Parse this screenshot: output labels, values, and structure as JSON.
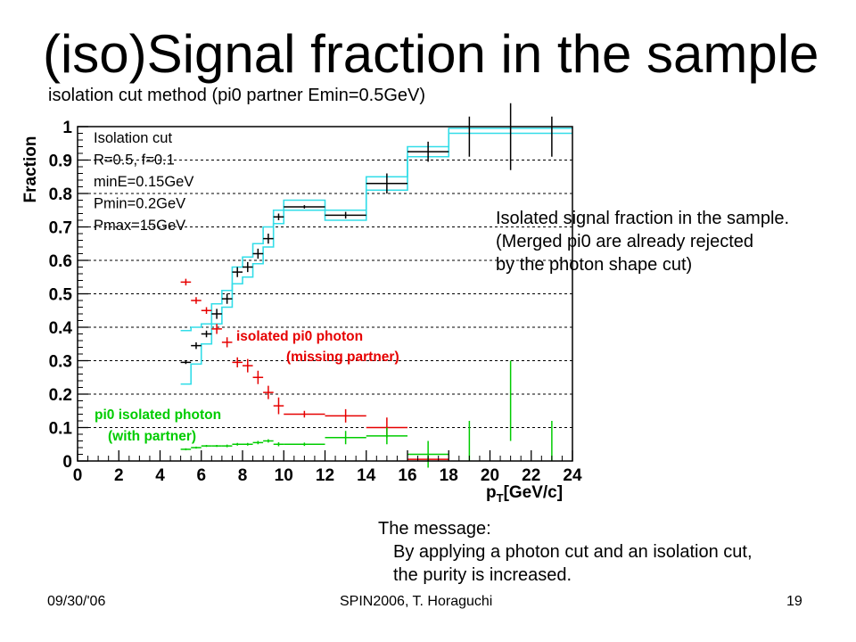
{
  "slide": {
    "title": "(iso)Signal fraction in the sample",
    "subtitle": "isolation cut method (pi0 partner Emin=0.5GeV)",
    "annotation_lines": [
      "Isolated signal fraction in the sample.",
      "(Merged pi0 are already rejected",
      "by the photon shape cut)"
    ],
    "message_title": "The message:",
    "message_lines": [
      "By applying a photon cut and an isolation cut,",
      "the purity is increased."
    ],
    "footer_date": "09/30/'06",
    "footer_center": "SPIN2006, T. Horaguchi",
    "footer_page": "19"
  },
  "chart_data": {
    "type": "scatter",
    "xlabel": "p_T[GeV/c]",
    "ylabel": "Fraction",
    "xlim": [
      0,
      24
    ],
    "ylim": [
      0,
      1
    ],
    "x_ticks": [
      0,
      2,
      4,
      6,
      8,
      10,
      12,
      14,
      16,
      18,
      20,
      22,
      24
    ],
    "y_ticks": [
      "0",
      "0.1",
      "0.2",
      "0.3",
      "0.4",
      "0.5",
      "0.6",
      "0.7",
      "0.8",
      "0.9",
      "1"
    ],
    "grid": "horizontal dashed",
    "info_box": [
      "Isolation cut",
      "R=0.5, f=0.1",
      "minE=0.15GeV",
      "Pmin=0.2GeV",
      "Pmax=15GeV"
    ],
    "series_labels": {
      "red": [
        "isolated pi0 photon",
        "(missing partner)"
      ],
      "green": [
        "pi0 isolated photon",
        "(with partner)"
      ]
    },
    "colors": {
      "black": "#000000",
      "red": "#e60000",
      "green": "#00cc00",
      "band": "#33dde8"
    },
    "series": [
      {
        "color": "black",
        "points": [
          {
            "x": 5.25,
            "y": 0.295,
            "xerr": 0.25,
            "yerr": 0.005
          },
          {
            "x": 5.75,
            "y": 0.345,
            "xerr": 0.25,
            "yerr": 0.01
          },
          {
            "x": 6.25,
            "y": 0.38,
            "xerr": 0.25,
            "yerr": 0.01
          },
          {
            "x": 6.75,
            "y": 0.44,
            "xerr": 0.25,
            "yerr": 0.015
          },
          {
            "x": 7.25,
            "y": 0.485,
            "xerr": 0.25,
            "yerr": 0.015
          },
          {
            "x": 7.75,
            "y": 0.565,
            "xerr": 0.25,
            "yerr": 0.015
          },
          {
            "x": 8.25,
            "y": 0.58,
            "xerr": 0.25,
            "yerr": 0.015
          },
          {
            "x": 8.75,
            "y": 0.62,
            "xerr": 0.25,
            "yerr": 0.015
          },
          {
            "x": 9.25,
            "y": 0.665,
            "xerr": 0.25,
            "yerr": 0.015
          },
          {
            "x": 9.75,
            "y": 0.73,
            "xerr": 0.25,
            "yerr": 0.01
          },
          {
            "x": 11.0,
            "y": 0.76,
            "xerr": 1.0,
            "yerr": 0.005
          },
          {
            "x": 13.0,
            "y": 0.735,
            "xerr": 1.0,
            "yerr": 0.01
          },
          {
            "x": 15.0,
            "y": 0.83,
            "xerr": 1.0,
            "yerr": 0.03
          },
          {
            "x": 17.0,
            "y": 0.925,
            "xerr": 1.0,
            "yerr": 0.03
          },
          {
            "x": 19.0,
            "y": 0.97,
            "xerr": 0,
            "yerr": 0.06
          },
          {
            "x": 21.0,
            "y": 0.97,
            "xerr": 0,
            "yerr": 0.1
          },
          {
            "x": 23.0,
            "y": 0.97,
            "xerr": 0,
            "yerr": 0.06
          }
        ]
      },
      {
        "color": "red",
        "points": [
          {
            "x": 5.25,
            "y": 0.535,
            "xerr": 0.25,
            "yerr": 0.01
          },
          {
            "x": 5.75,
            "y": 0.48,
            "xerr": 0.25,
            "yerr": 0.01
          },
          {
            "x": 6.25,
            "y": 0.45,
            "xerr": 0.25,
            "yerr": 0.01
          },
          {
            "x": 6.75,
            "y": 0.395,
            "xerr": 0.25,
            "yerr": 0.015
          },
          {
            "x": 7.25,
            "y": 0.355,
            "xerr": 0.25,
            "yerr": 0.015
          },
          {
            "x": 7.75,
            "y": 0.295,
            "xerr": 0.25,
            "yerr": 0.015
          },
          {
            "x": 8.25,
            "y": 0.285,
            "xerr": 0.25,
            "yerr": 0.02
          },
          {
            "x": 8.75,
            "y": 0.25,
            "xerr": 0.25,
            "yerr": 0.02
          },
          {
            "x": 9.25,
            "y": 0.205,
            "xerr": 0.25,
            "yerr": 0.02
          },
          {
            "x": 9.75,
            "y": 0.165,
            "xerr": 0.25,
            "yerr": 0.025
          },
          {
            "x": 11.0,
            "y": 0.14,
            "xerr": 1.0,
            "yerr": 0.01
          },
          {
            "x": 13.0,
            "y": 0.135,
            "xerr": 1.0,
            "yerr": 0.02
          },
          {
            "x": 15.0,
            "y": 0.1,
            "xerr": 1.0,
            "yerr": 0.03
          },
          {
            "x": 17.0,
            "y": 0.005,
            "xerr": 1.0,
            "yerr": 0.005
          }
        ]
      },
      {
        "color": "green",
        "points": [
          {
            "x": 5.25,
            "y": 0.035,
            "xerr": 0.25,
            "yerr": 0.003
          },
          {
            "x": 5.75,
            "y": 0.04,
            "xerr": 0.25,
            "yerr": 0.003
          },
          {
            "x": 6.25,
            "y": 0.045,
            "xerr": 0.25,
            "yerr": 0.003
          },
          {
            "x": 6.75,
            "y": 0.045,
            "xerr": 0.25,
            "yerr": 0.003
          },
          {
            "x": 7.25,
            "y": 0.045,
            "xerr": 0.25,
            "yerr": 0.004
          },
          {
            "x": 7.75,
            "y": 0.05,
            "xerr": 0.25,
            "yerr": 0.004
          },
          {
            "x": 8.25,
            "y": 0.05,
            "xerr": 0.25,
            "yerr": 0.004
          },
          {
            "x": 8.75,
            "y": 0.055,
            "xerr": 0.25,
            "yerr": 0.005
          },
          {
            "x": 9.25,
            "y": 0.06,
            "xerr": 0.25,
            "yerr": 0.005
          },
          {
            "x": 9.75,
            "y": 0.05,
            "xerr": 0.25,
            "yerr": 0.006
          },
          {
            "x": 11.0,
            "y": 0.05,
            "xerr": 1.0,
            "yerr": 0.005
          },
          {
            "x": 13.0,
            "y": 0.07,
            "xerr": 1.0,
            "yerr": 0.02
          },
          {
            "x": 15.0,
            "y": 0.075,
            "xerr": 1.0,
            "yerr": 0.025
          },
          {
            "x": 17.0,
            "y": 0.02,
            "xerr": 1.0,
            "yerr": 0.04
          },
          {
            "x": 19.0,
            "y": 0.0,
            "xerr": 0,
            "yerr": 0.06
          },
          {
            "x": 21.0,
            "y": 0.06,
            "xerr": 0,
            "yerr": 0.12
          },
          {
            "x": 23.0,
            "y": 0.0,
            "xerr": 0,
            "yerr": 0.06
          }
        ]
      }
    ],
    "band": {
      "edges": [
        5,
        5.5,
        6,
        6.5,
        7,
        7.5,
        8,
        8.5,
        9,
        9.5,
        10,
        12,
        14,
        16,
        18,
        24
      ],
      "upper": [
        0.39,
        0.4,
        0.41,
        0.47,
        0.51,
        0.58,
        0.61,
        0.65,
        0.7,
        0.75,
        0.78,
        0.75,
        0.85,
        0.94,
        0.995
      ],
      "lower": [
        0.23,
        0.29,
        0.35,
        0.41,
        0.46,
        0.53,
        0.55,
        0.59,
        0.64,
        0.71,
        0.75,
        0.72,
        0.81,
        0.91,
        0.98
      ]
    }
  }
}
